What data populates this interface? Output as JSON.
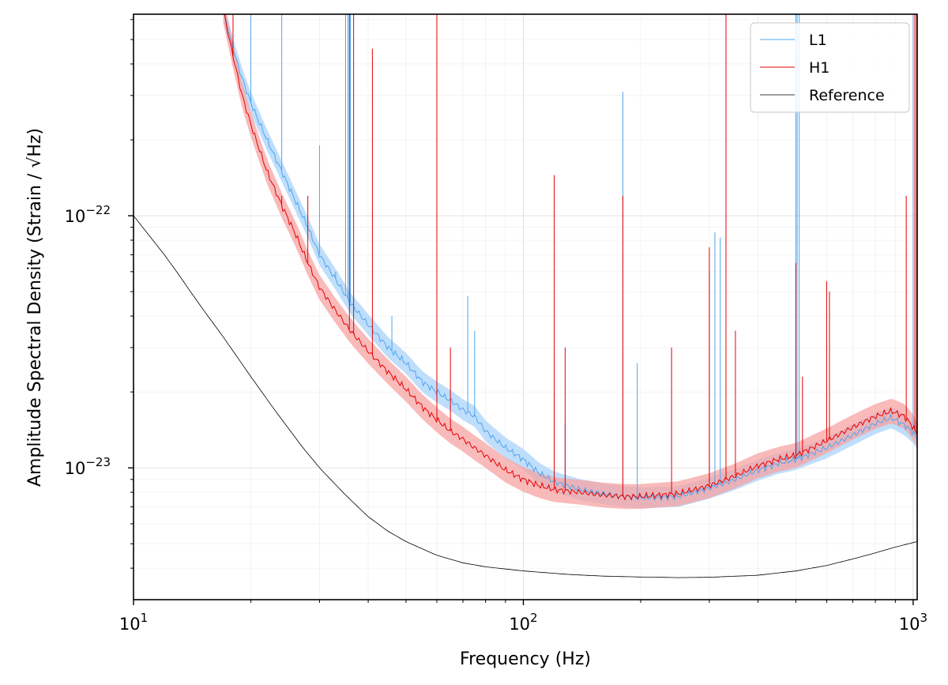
{
  "chart_data": {
    "type": "line",
    "title": "",
    "xlabel": "Frequency (Hz)",
    "ylabel": "Amplitude Spectral Density (Strain / √Hz)",
    "x_scale": "log",
    "y_scale": "log",
    "xlim": [
      10,
      1024
    ],
    "ylim": [
      3e-24,
      6.3e-22
    ],
    "grid": true,
    "legend_position": "top-right",
    "x_ticks": [
      {
        "value": 10,
        "base": "10",
        "exp": "1"
      },
      {
        "value": 100,
        "base": "10",
        "exp": "2"
      },
      {
        "value": 1000,
        "base": "10",
        "exp": "3"
      }
    ],
    "y_ticks": [
      {
        "value": 1e-23,
        "base": "10",
        "exp": "−23"
      },
      {
        "value": 1e-22,
        "base": "10",
        "exp": "−22"
      }
    ],
    "series": [
      {
        "name": "L1",
        "color": "#4ea5f0",
        "band_color": "#bcdcfb",
        "band_factor": 1.1,
        "x": [
          17,
          18,
          19,
          20,
          22,
          24,
          26,
          28,
          30,
          33,
          36,
          40,
          45,
          50,
          55,
          60,
          65,
          70,
          75,
          80,
          90,
          100,
          110,
          120,
          140,
          160,
          180,
          200,
          250,
          300,
          350,
          400,
          450,
          500,
          600,
          700,
          800,
          880,
          950,
          1000,
          1024
        ],
        "y": [
          6.5e-22,
          4.6e-22,
          3.5e-22,
          2.8e-22,
          2e-22,
          1.5e-22,
          1.15e-22,
          9e-23,
          7e-23,
          5.6e-23,
          4.5e-23,
          3.7e-23,
          3e-23,
          2.6e-23,
          2.2e-23,
          2e-23,
          1.85e-23,
          1.7e-23,
          1.6e-23,
          1.4e-23,
          1.2e-23,
          1.08e-23,
          9.5e-24,
          8.8e-24,
          8.2e-24,
          7.9e-24,
          7.7e-24,
          7.6e-24,
          7.7e-24,
          8.3e-24,
          9e-24,
          9.8e-24,
          1.04e-23,
          1.08e-23,
          1.2e-23,
          1.35e-23,
          1.5e-23,
          1.58e-23,
          1.48e-23,
          1.38e-23,
          1.3e-23
        ],
        "lines": [
          {
            "f": 20,
            "a": 7e-22
          },
          {
            "f": 24,
            "a": 7e-22
          },
          {
            "f": 30,
            "a": 1.9e-22
          },
          {
            "f": 33,
            "a": 6e-23
          },
          {
            "f": 35,
            "a": 7e-22
          },
          {
            "f": 35.5,
            "a": 7e-22
          },
          {
            "f": 36,
            "a": 7e-22
          },
          {
            "f": 46,
            "a": 4e-23
          },
          {
            "f": 60,
            "a": 6e-23
          },
          {
            "f": 72,
            "a": 4.8e-23
          },
          {
            "f": 75,
            "a": 3.5e-23
          },
          {
            "f": 120,
            "a": 2e-23
          },
          {
            "f": 128,
            "a": 1.5e-23
          },
          {
            "f": 180,
            "a": 3.1e-22
          },
          {
            "f": 196,
            "a": 2.6e-23
          },
          {
            "f": 300,
            "a": 6e-23
          },
          {
            "f": 310,
            "a": 8.6e-23
          },
          {
            "f": 320,
            "a": 8.2e-23
          },
          {
            "f": 500,
            "a": 7e-22
          },
          {
            "f": 504,
            "a": 7e-22
          },
          {
            "f": 510,
            "a": 7e-22
          },
          {
            "f": 1000,
            "a": 7e-22
          }
        ]
      },
      {
        "name": "H1",
        "color": "#e60000",
        "band_color": "#f7a3a3",
        "band_factor": 1.12,
        "x": [
          17,
          18,
          19,
          20,
          22,
          24,
          26,
          28,
          30,
          33,
          36,
          40,
          45,
          50,
          55,
          60,
          65,
          70,
          75,
          80,
          90,
          100,
          110,
          120,
          140,
          160,
          180,
          200,
          250,
          300,
          350,
          400,
          450,
          500,
          600,
          700,
          800,
          880,
          950,
          1000,
          1024
        ],
        "y": [
          6.5e-22,
          4.3e-22,
          3e-22,
          2.3e-22,
          1.5e-22,
          1.1e-22,
          8.5e-23,
          6.5e-23,
          5.2e-23,
          4.2e-23,
          3.5e-23,
          2.9e-23,
          2.4e-23,
          2.05e-23,
          1.75e-23,
          1.55e-23,
          1.4e-23,
          1.3e-23,
          1.2e-23,
          1.12e-23,
          9.8e-24,
          9e-24,
          8.5e-24,
          8.2e-24,
          8e-24,
          7.8e-24,
          7.7e-24,
          7.7e-24,
          7.9e-24,
          8.5e-24,
          9.3e-24,
          1.02e-23,
          1.08e-23,
          1.12e-23,
          1.28e-23,
          1.45e-23,
          1.6e-23,
          1.68e-23,
          1.6e-23,
          1.45e-23,
          1.35e-23
        ],
        "lines": [
          {
            "f": 18,
            "a": 7e-22
          },
          {
            "f": 24,
            "a": 1.2e-22
          },
          {
            "f": 28,
            "a": 1.2e-22
          },
          {
            "f": 35.8,
            "a": 7e-22
          },
          {
            "f": 36.7,
            "a": 7e-22
          },
          {
            "f": 41,
            "a": 4.6e-22
          },
          {
            "f": 60,
            "a": 7e-22
          },
          {
            "f": 65,
            "a": 3e-23
          },
          {
            "f": 120,
            "a": 1.45e-22
          },
          {
            "f": 128,
            "a": 3e-23
          },
          {
            "f": 180,
            "a": 1.2e-22
          },
          {
            "f": 240,
            "a": 3e-23
          },
          {
            "f": 300,
            "a": 7.5e-23
          },
          {
            "f": 331,
            "a": 7e-22
          },
          {
            "f": 350,
            "a": 3.5e-23
          },
          {
            "f": 500,
            "a": 6.5e-23
          },
          {
            "f": 520,
            "a": 2.3e-23
          },
          {
            "f": 600,
            "a": 5.5e-23
          },
          {
            "f": 610,
            "a": 5e-23
          },
          {
            "f": 960,
            "a": 1.2e-22
          },
          {
            "f": 1010,
            "a": 7e-22
          },
          {
            "f": 1020,
            "a": 7e-22
          }
        ]
      },
      {
        "name": "Reference",
        "color": "#000000",
        "x": [
          10,
          11,
          12,
          13,
          14,
          15,
          17,
          20,
          23,
          27,
          30,
          35,
          40,
          45,
          50,
          60,
          70,
          80,
          100,
          130,
          160,
          200,
          250,
          300,
          400,
          500,
          600,
          700,
          800,
          900,
          1024
        ],
        "y": [
          1e-22,
          8.3e-23,
          7e-23,
          5.9e-23,
          5e-23,
          4.3e-23,
          3.3e-23,
          2.3e-23,
          1.7e-23,
          1.22e-23,
          1e-23,
          7.8e-24,
          6.4e-24,
          5.6e-24,
          5.1e-24,
          4.5e-24,
          4.2e-24,
          4.05e-24,
          3.9e-24,
          3.78e-24,
          3.72e-24,
          3.69e-24,
          3.67e-24,
          3.68e-24,
          3.75e-24,
          3.9e-24,
          4.1e-24,
          4.35e-24,
          4.6e-24,
          4.85e-24,
          5.1e-24
        ]
      }
    ]
  }
}
